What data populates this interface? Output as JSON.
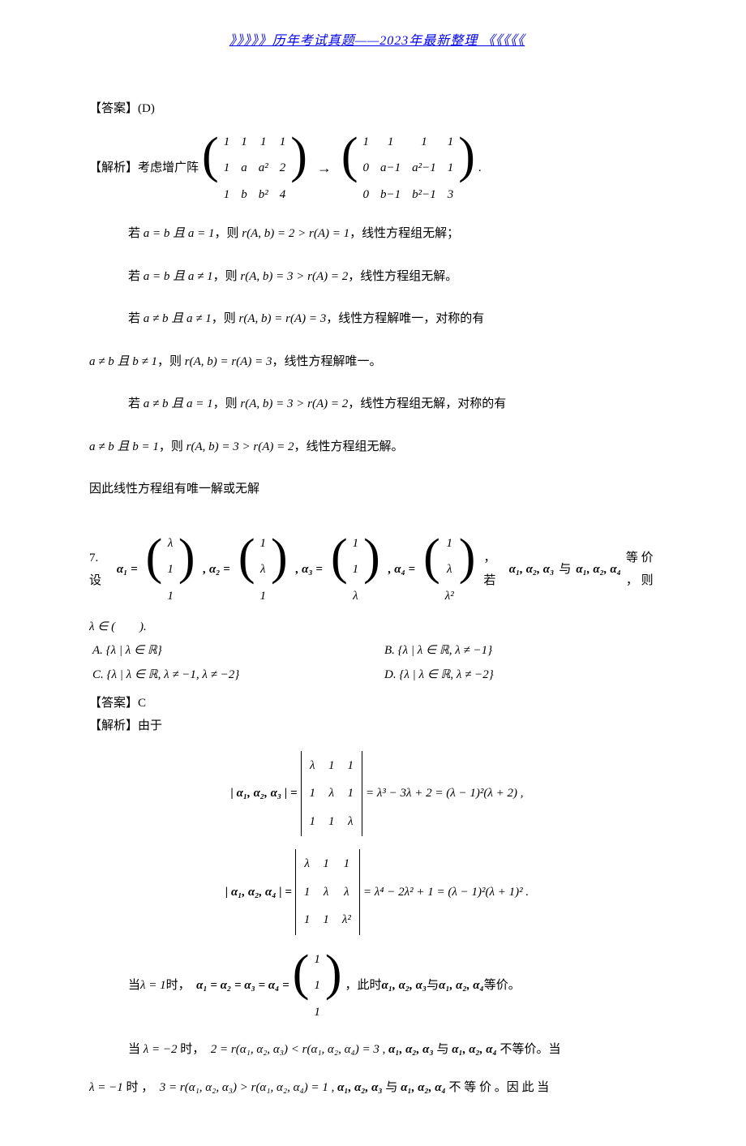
{
  "header": {
    "text": "》》》》》历年考试真题——2023年最新整理 《《《《《"
  },
  "answer6": {
    "label": "【答案】",
    "value": "(D)"
  },
  "analysis6": {
    "label": "【解析】",
    "intro": "考虑增广阵",
    "M1": [
      [
        "1",
        "1",
        "1",
        "1"
      ],
      [
        "1",
        "a",
        "a²",
        "2"
      ],
      [
        "1",
        "b",
        "b²",
        "4"
      ]
    ],
    "M2": [
      [
        "1",
        "1",
        "1",
        "1"
      ],
      [
        "0",
        "a−1",
        "a²−1",
        "1"
      ],
      [
        "0",
        "b−1",
        "b²−1",
        "3"
      ]
    ],
    "tail": "."
  },
  "cases": {
    "c1": {
      "pre": "若 ",
      "cond": "a = b 且 a = 1",
      "mid": "，则 ",
      "rank": "r(A, b) = 2 > r(A) = 1",
      "post": "，线性方程组无解；"
    },
    "c2": {
      "pre": "若 ",
      "cond": "a = b 且 a ≠ 1",
      "mid": "，则 ",
      "rank": "r(A, b) = 3 > r(A) = 2",
      "post": "，线性方程组无解。"
    },
    "c3": {
      "pre": "若 ",
      "cond": "a ≠ b 且 a ≠ 1",
      "mid": "，则 ",
      "rank": "r(A, b) = r(A) = 3",
      "post": "，线性方程解唯一，对称的有"
    },
    "c3b": {
      "cond": "a ≠ b 且 b ≠ 1",
      "mid": "，则 ",
      "rank": "r(A, b) = r(A) = 3",
      "post": "，线性方程解唯一。"
    },
    "c4": {
      "pre": "若 ",
      "cond": "a ≠ b 且 a = 1",
      "mid": "，则 ",
      "rank": "r(A, b) = 3 > r(A) = 2",
      "post": "，线性方程组无解，对称的有"
    },
    "c4b": {
      "cond": "a ≠ b 且 b = 1",
      "mid": "，则 ",
      "rank": "r(A, b) = 3 > r(A) = 2",
      "post": "，线性方程组无解。"
    },
    "conclude": "因此线性方程组有唯一解或无解"
  },
  "q7": {
    "num": "7.　设 ",
    "a1lbl": "α₁ =",
    "a1": [
      "λ",
      "1",
      "1"
    ],
    "a2lbl": ", α₂ =",
    "a2": [
      "1",
      "λ",
      "1"
    ],
    "a3lbl": ", α₃ =",
    "a3": [
      "1",
      "1",
      "λ"
    ],
    "a4lbl": ", α₄ =",
    "a4": [
      "1",
      "λ",
      "λ²"
    ],
    "tail1": "，　若 ",
    "grp1": "α₁, α₂, α₃",
    "tail2": " 与 ",
    "grp2": "α₁, α₂, α₄",
    "tail3": " 等 价 ， 则",
    "lamline": "λ ∈ (　　).",
    "optA": "A. {λ | λ ∈ ℝ}",
    "optB": "B. {λ | λ ∈ ℝ, λ ≠ −1}",
    "optC": "C. {λ | λ ∈ ℝ, λ ≠ −1, λ ≠ −2}",
    "optD": "D. {λ | λ ∈ ℝ, λ ≠ −2}",
    "ansLabel": "【答案】",
    "ansVal": "C",
    "anaLabel": "【解析】",
    "anaText": "由于"
  },
  "det1": {
    "lhs": "| α₁, α₂, α₃ | = ",
    "cells": [
      [
        "λ",
        "1",
        "1"
      ],
      [
        "1",
        "λ",
        "1"
      ],
      [
        "1",
        "1",
        "λ"
      ]
    ],
    "rhs": " = λ³ − 3λ + 2 = (λ − 1)²(λ + 2) ,"
  },
  "det2": {
    "lhs": "| α₁, α₂, α₄ | = ",
    "cells": [
      [
        "λ",
        "1",
        "1"
      ],
      [
        "1",
        "λ",
        "λ"
      ],
      [
        "1",
        "1",
        "λ²"
      ]
    ],
    "rhs": " = λ⁴ − 2λ² + 1 = (λ − 1)²(λ + 1)² ."
  },
  "lam1": {
    "pre": "当 ",
    "cond": "λ = 1",
    "mid": " 时，　",
    "eq": "α₁ = α₂ = α₃ = α₄ = ",
    "vec": [
      "1",
      "1",
      "1"
    ],
    "post1": "，此时 ",
    "g1": "α₁, α₂, α₃",
    "post2": " 与 ",
    "g2": "α₁, α₂, α₄",
    "post3": " 等价。"
  },
  "lam2": {
    "pre": "当 ",
    "cond": "λ = −2",
    "mid": " 时，　",
    "rank": "2 = r(α₁, α₂, α₃) < r(α₁, α₂, α₄) = 3",
    "post1": " , ",
    "g1": "α₁, α₂, α₃",
    "post2": " 与 ",
    "g2": "α₁, α₂, α₄",
    "post3": " 不等价。当"
  },
  "lam3": {
    "cond": "λ = −1",
    "mid": " 时 ，　",
    "rank": "3 = r(α₁, α₂, α₃) > r(α₁, α₂, α₄) = 1",
    "post1": " , ",
    "g1": "α₁, α₂, α₃",
    "post2": " 与 ",
    "g2": "α₁, α₂, α₄",
    "post3": " 不 等 价 。因 此 当"
  },
  "colors": {
    "text": "#000000",
    "link": "#0000ee",
    "bg": "#ffffff"
  },
  "typography": {
    "body_fontsize": 15,
    "header_fontsize": 16,
    "matrix_paren_fontsize": 62
  }
}
